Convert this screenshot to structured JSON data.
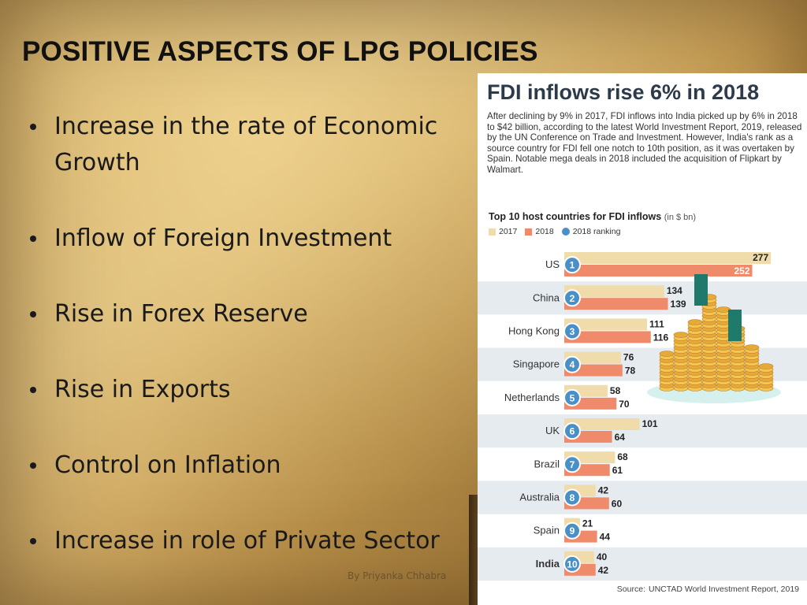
{
  "slide": {
    "title": "POSITIVE ASPECTS OF LPG POLICIES",
    "bullets": [
      "Increase in the rate of Economic Growth",
      "Inflow of Foreign Investment",
      "Rise in Forex Reserve",
      "Rise in Exports",
      "Control on Inflation",
      "Increase in role of Private Sector"
    ],
    "credit": "By Priyanka Chhabra"
  },
  "infographic": {
    "title": "FDI inflows rise 6% in 2018",
    "body": "After declining by 9% in 2017, FDI inflows into India picked up by 6% in 2018 to $42 billion, according to the latest World Investment Report, 2019, released by the UN Conference on Trade and Investment. However, India's rank as a source country for FDI fell one notch to 10th position, as it was overtaken by Spain. Notable mega deals in 2018 included the acquisition of Flipkart by Walmart.",
    "chart_title": "Top 10 host countries for FDI inflows",
    "chart_unit": "(in $ bn)",
    "legend": {
      "s2017": "2017",
      "s2018": "2018",
      "ranking": "2018 ranking"
    },
    "source_label": "Source:",
    "source": "UNCTAD World Investment Report, 2019",
    "colors": {
      "s2017": "#f0dcab",
      "s2018": "#ef8a6a",
      "ranking": "#4a90c8",
      "stripe": "#e6ebf0",
      "accent": "#1f7a6c"
    }
  },
  "chart_data": {
    "type": "bar",
    "orientation": "horizontal",
    "title": "Top 10 host countries for FDI inflows",
    "unit": "(in $ bn)",
    "categories": [
      "US",
      "China",
      "Hong Kong",
      "Singapore",
      "Netherlands",
      "UK",
      "Brazil",
      "Australia",
      "Spain",
      "India"
    ],
    "ranking": [
      1,
      2,
      3,
      4,
      5,
      6,
      7,
      8,
      9,
      10
    ],
    "series": [
      {
        "name": "2017",
        "values": [
          277,
          134,
          111,
          76,
          58,
          101,
          68,
          42,
          21,
          40
        ]
      },
      {
        "name": "2018",
        "values": [
          252,
          139,
          116,
          78,
          70,
          64,
          61,
          60,
          44,
          42
        ]
      }
    ],
    "xlim": [
      0,
      280
    ],
    "legend": "top-left",
    "grid": false
  }
}
